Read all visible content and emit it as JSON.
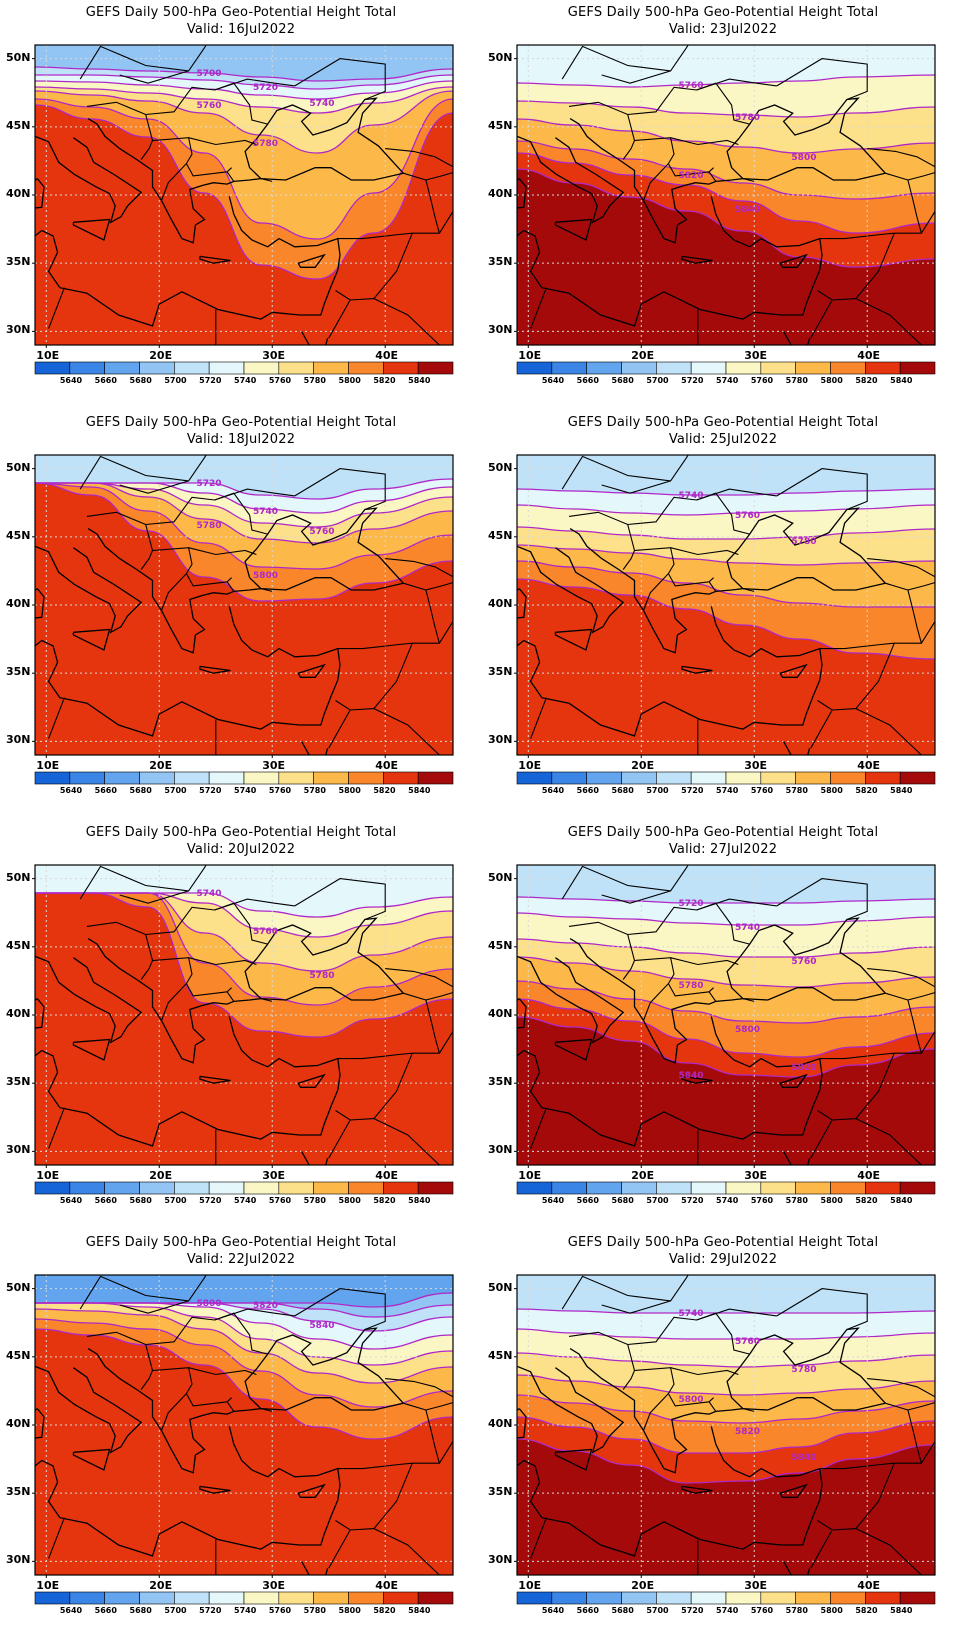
{
  "panels": [
    {
      "title": "GEFS Daily 500-hPa Geo-Potential Height Total",
      "valid": "Valid: 16Jul2022",
      "contours": [
        "5700",
        "5720",
        "5740",
        "5760",
        "5780"
      ]
    },
    {
      "title": "GEFS Daily 500-hPa Geo-Potential Height Total",
      "valid": "Valid: 23Jul2022",
      "contours": [
        "5760",
        "5780",
        "5800",
        "5820",
        "5840"
      ]
    },
    {
      "title": "GEFS Daily 500-hPa Geo-Potential Height Total",
      "valid": "Valid: 18Jul2022",
      "contours": [
        "5720",
        "5740",
        "5760",
        "5780",
        "5800"
      ]
    },
    {
      "title": "GEFS Daily 500-hPa Geo-Potential Height Total",
      "valid": "Valid: 25Jul2022",
      "contours": [
        "5740",
        "5760",
        "5780"
      ]
    },
    {
      "title": "GEFS Daily 500-hPa Geo-Potential Height Total",
      "valid": "Valid: 20Jul2022",
      "contours": [
        "5740",
        "5760",
        "5780"
      ]
    },
    {
      "title": "GEFS Daily 500-hPa Geo-Potential Height Total",
      "valid": "Valid: 27Jul2022",
      "contours": [
        "5720",
        "5740",
        "5760",
        "5780",
        "5800",
        "5820",
        "5840"
      ]
    },
    {
      "title": "GEFS Daily 500-hPa Geo-Potential Height Total",
      "valid": "Valid: 22Jul2022",
      "contours": [
        "5800",
        "5820",
        "5840"
      ]
    },
    {
      "title": "GEFS Daily 500-hPa Geo-Potential Height Total",
      "valid": "Valid: 29Jul2022",
      "contours": [
        "5740",
        "5760",
        "5780",
        "5800",
        "5820",
        "5840"
      ]
    }
  ],
  "lat_labels": [
    "50N",
    "45N",
    "40N",
    "35N",
    "30N"
  ],
  "lon_labels": [
    "10E",
    "20E",
    "30E",
    "40E"
  ],
  "colorbar": {
    "labels": [
      "5640",
      "5660",
      "5680",
      "5700",
      "5720",
      "5740",
      "5760",
      "5780",
      "5800",
      "5820",
      "5840"
    ],
    "colors": [
      "#1565d8",
      "#3a85e6",
      "#62a4ee",
      "#92c4f4",
      "#bfe2f8",
      "#e4f7fb",
      "#fbf7c4",
      "#fde08a",
      "#fdb84a",
      "#f9862a",
      "#e4350f",
      "#a50a0a"
    ]
  },
  "contour_color": "#b028c8",
  "grid_color": "#d8d8d8"
}
